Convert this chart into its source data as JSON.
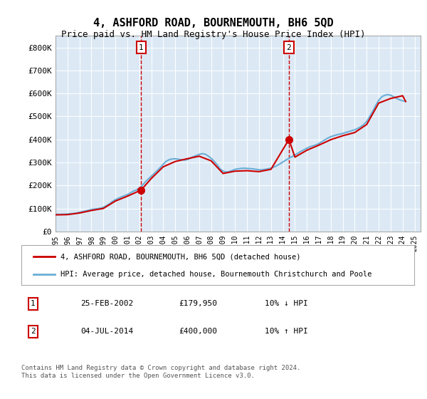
{
  "title": "4, ASHFORD ROAD, BOURNEMOUTH, BH6 5QD",
  "subtitle": "Price paid vs. HM Land Registry's House Price Index (HPI)",
  "bg_color": "#dce9f5",
  "plot_bg_color": "#dce9f5",
  "hpi_color": "#6aaed6",
  "sale_color": "#cc0000",
  "marker_color": "#cc0000",
  "vline_color": "#cc0000",
  "ylim": [
    0,
    850000
  ],
  "yticks": [
    0,
    100000,
    200000,
    300000,
    400000,
    500000,
    600000,
    700000,
    800000
  ],
  "ytick_labels": [
    "£0",
    "£100K",
    "£200K",
    "£300K",
    "£400K",
    "£500K",
    "£600K",
    "£700K",
    "£800K"
  ],
  "sale1_date": 2002.15,
  "sale1_price": 179950,
  "sale2_date": 2014.5,
  "sale2_price": 400000,
  "legend_sale_label": "4, ASHFORD ROAD, BOURNEMOUTH, BH6 5QD (detached house)",
  "legend_hpi_label": "HPI: Average price, detached house, Bournemouth Christchurch and Poole",
  "annotation1_label": "1",
  "annotation2_label": "2",
  "table_rows": [
    [
      "1",
      "25-FEB-2002",
      "£179,950",
      "10% ↓ HPI"
    ],
    [
      "2",
      "04-JUL-2014",
      "£400,000",
      "10% ↑ HPI"
    ]
  ],
  "footer": "Contains HM Land Registry data © Crown copyright and database right 2024.\nThis data is licensed under the Open Government Licence v3.0.",
  "hpi_data": {
    "years": [
      1995.0,
      1995.25,
      1995.5,
      1995.75,
      1996.0,
      1996.25,
      1996.5,
      1996.75,
      1997.0,
      1997.25,
      1997.5,
      1997.75,
      1998.0,
      1998.25,
      1998.5,
      1998.75,
      1999.0,
      1999.25,
      1999.5,
      1999.75,
      2000.0,
      2000.25,
      2000.5,
      2000.75,
      2001.0,
      2001.25,
      2001.5,
      2001.75,
      2002.0,
      2002.25,
      2002.5,
      2002.75,
      2003.0,
      2003.25,
      2003.5,
      2003.75,
      2004.0,
      2004.25,
      2004.5,
      2004.75,
      2005.0,
      2005.25,
      2005.5,
      2005.75,
      2006.0,
      2006.25,
      2006.5,
      2006.75,
      2007.0,
      2007.25,
      2007.5,
      2007.75,
      2008.0,
      2008.25,
      2008.5,
      2008.75,
      2009.0,
      2009.25,
      2009.5,
      2009.75,
      2010.0,
      2010.25,
      2010.5,
      2010.75,
      2011.0,
      2011.25,
      2011.5,
      2011.75,
      2012.0,
      2012.25,
      2012.5,
      2012.75,
      2013.0,
      2013.25,
      2013.5,
      2013.75,
      2014.0,
      2014.25,
      2014.5,
      2014.75,
      2015.0,
      2015.25,
      2015.5,
      2015.75,
      2016.0,
      2016.25,
      2016.5,
      2016.75,
      2017.0,
      2017.25,
      2017.5,
      2017.75,
      2018.0,
      2018.25,
      2018.5,
      2018.75,
      2019.0,
      2019.25,
      2019.5,
      2019.75,
      2020.0,
      2020.25,
      2020.5,
      2020.75,
      2021.0,
      2021.25,
      2021.5,
      2021.75,
      2022.0,
      2022.25,
      2022.5,
      2022.75,
      2023.0,
      2023.25,
      2023.5,
      2023.75,
      2024.0,
      2024.25
    ],
    "values": [
      75000,
      74000,
      74500,
      75000,
      76000,
      77000,
      78000,
      80000,
      83000,
      86000,
      89000,
      92000,
      95000,
      97000,
      99000,
      101000,
      105000,
      112000,
      120000,
      130000,
      138000,
      144000,
      150000,
      155000,
      160000,
      167000,
      175000,
      180000,
      188000,
      200000,
      215000,
      228000,
      240000,
      252000,
      265000,
      278000,
      292000,
      305000,
      312000,
      315000,
      316000,
      314000,
      312000,
      310000,
      312000,
      318000,
      325000,
      330000,
      335000,
      338000,
      336000,
      328000,
      318000,
      305000,
      290000,
      272000,
      262000,
      258000,
      260000,
      265000,
      270000,
      272000,
      274000,
      275000,
      274000,
      273000,
      272000,
      270000,
      268000,
      268000,
      270000,
      272000,
      275000,
      280000,
      286000,
      294000,
      302000,
      310000,
      318000,
      325000,
      333000,
      340000,
      348000,
      355000,
      362000,
      368000,
      372000,
      376000,
      382000,
      390000,
      398000,
      406000,
      412000,
      416000,
      420000,
      423000,
      426000,
      430000,
      434000,
      438000,
      442000,
      448000,
      455000,
      465000,
      478000,
      500000,
      522000,
      548000,
      570000,
      585000,
      592000,
      595000,
      592000,
      585000,
      578000,
      572000,
      568000,
      565000
    ]
  },
  "sale_line_data": {
    "years": [
      1995.0,
      1996.0,
      1997.0,
      1998.0,
      1999.0,
      2000.0,
      2001.0,
      2002.15,
      2002.15,
      2003.0,
      2004.0,
      2005.0,
      2006.0,
      2007.0,
      2008.0,
      2009.0,
      2010.0,
      2011.0,
      2012.0,
      2013.0,
      2014.5,
      2014.5,
      2015.0,
      2016.0,
      2017.0,
      2018.0,
      2019.0,
      2020.0,
      2021.0,
      2022.0,
      2023.0,
      2024.0,
      2024.25
    ],
    "values": [
      72000,
      73000,
      80000,
      91000,
      100000,
      132000,
      153000,
      179950,
      179950,
      230000,
      281000,
      304000,
      316000,
      327000,
      307000,
      252000,
      262000,
      264000,
      260000,
      270000,
      400000,
      400000,
      323000,
      353000,
      375000,
      399000,
      416000,
      430000,
      465000,
      558000,
      578000,
      590000,
      565000
    ]
  }
}
